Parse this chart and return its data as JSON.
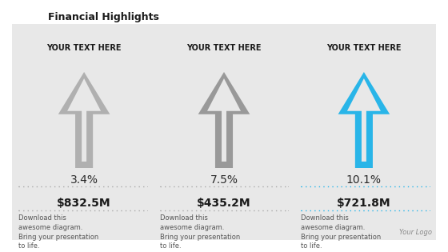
{
  "title": "Financial Highlights",
  "background_color": "#e8e8e8",
  "outer_bg": "#ffffff",
  "columns": [
    {
      "header": "YOUR TEXT HERE",
      "percentage": "3.4%",
      "amount": "$832.5M",
      "description": "Download this\nawesome diagram.\nBring your presentation\nto life.",
      "arrow_color": "#b0b0b0",
      "dot_color": "#aaaaaa"
    },
    {
      "header": "YOUR TEXT HERE",
      "percentage": "7.5%",
      "amount": "$435.2M",
      "description": "Download this\nawesome diagram.\nBring your presentation\nto life.",
      "arrow_color": "#999999",
      "dot_color": "#aaaaaa"
    },
    {
      "header": "YOUR TEXT HERE",
      "percentage": "10.1%",
      "amount": "$721.8M",
      "description": "Download this\nawesome diagram.\nBring your presentation\nto life.",
      "arrow_color": "#29b5e8",
      "dot_color": "#29b5e8"
    }
  ],
  "footer_text": "Your Logo",
  "title_fontsize": 9,
  "header_fontsize": 7,
  "pct_fontsize": 10,
  "amount_fontsize": 10,
  "desc_fontsize": 6
}
